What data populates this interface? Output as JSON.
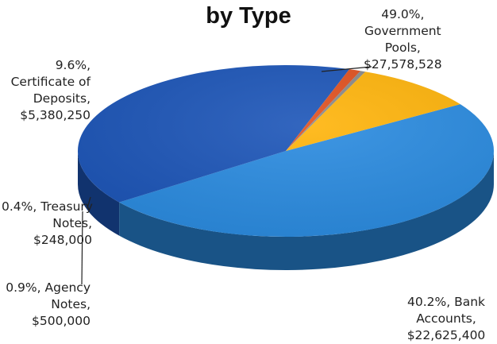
{
  "chart_data": {
    "type": "pie",
    "title": "by Type",
    "slices": [
      {
        "name": "Government Pools",
        "percent": 49.0,
        "value": 27578528,
        "label_lines": [
          "49.0%,",
          "Government",
          "Pools,",
          "$27,578,528"
        ],
        "color": "#2A8BE0"
      },
      {
        "name": "Bank Accounts",
        "percent": 40.2,
        "value": 22625400,
        "label_lines": [
          "40.2%, Bank",
          "Accounts,",
          "$22,625,400"
        ],
        "color": "#1C55B8"
      },
      {
        "name": "Agency Notes",
        "percent": 0.9,
        "value": 500000,
        "label_lines": [
          "0.9%, Agency",
          "Notes,",
          "$500,000"
        ],
        "color": "#E0501E"
      },
      {
        "name": "Treasury Notes",
        "percent": 0.4,
        "value": 248000,
        "label_lines": [
          "0.4%, Treasury",
          "Notes,",
          "$248,000"
        ],
        "color": "#8A8A8A"
      },
      {
        "name": "Certificate of Deposits",
        "percent": 9.6,
        "value": 5380250,
        "label_lines": [
          "9.6%,",
          "Certificate of",
          "Deposits,",
          "$5,380,250"
        ],
        "color": "#FFB40A"
      }
    ]
  }
}
